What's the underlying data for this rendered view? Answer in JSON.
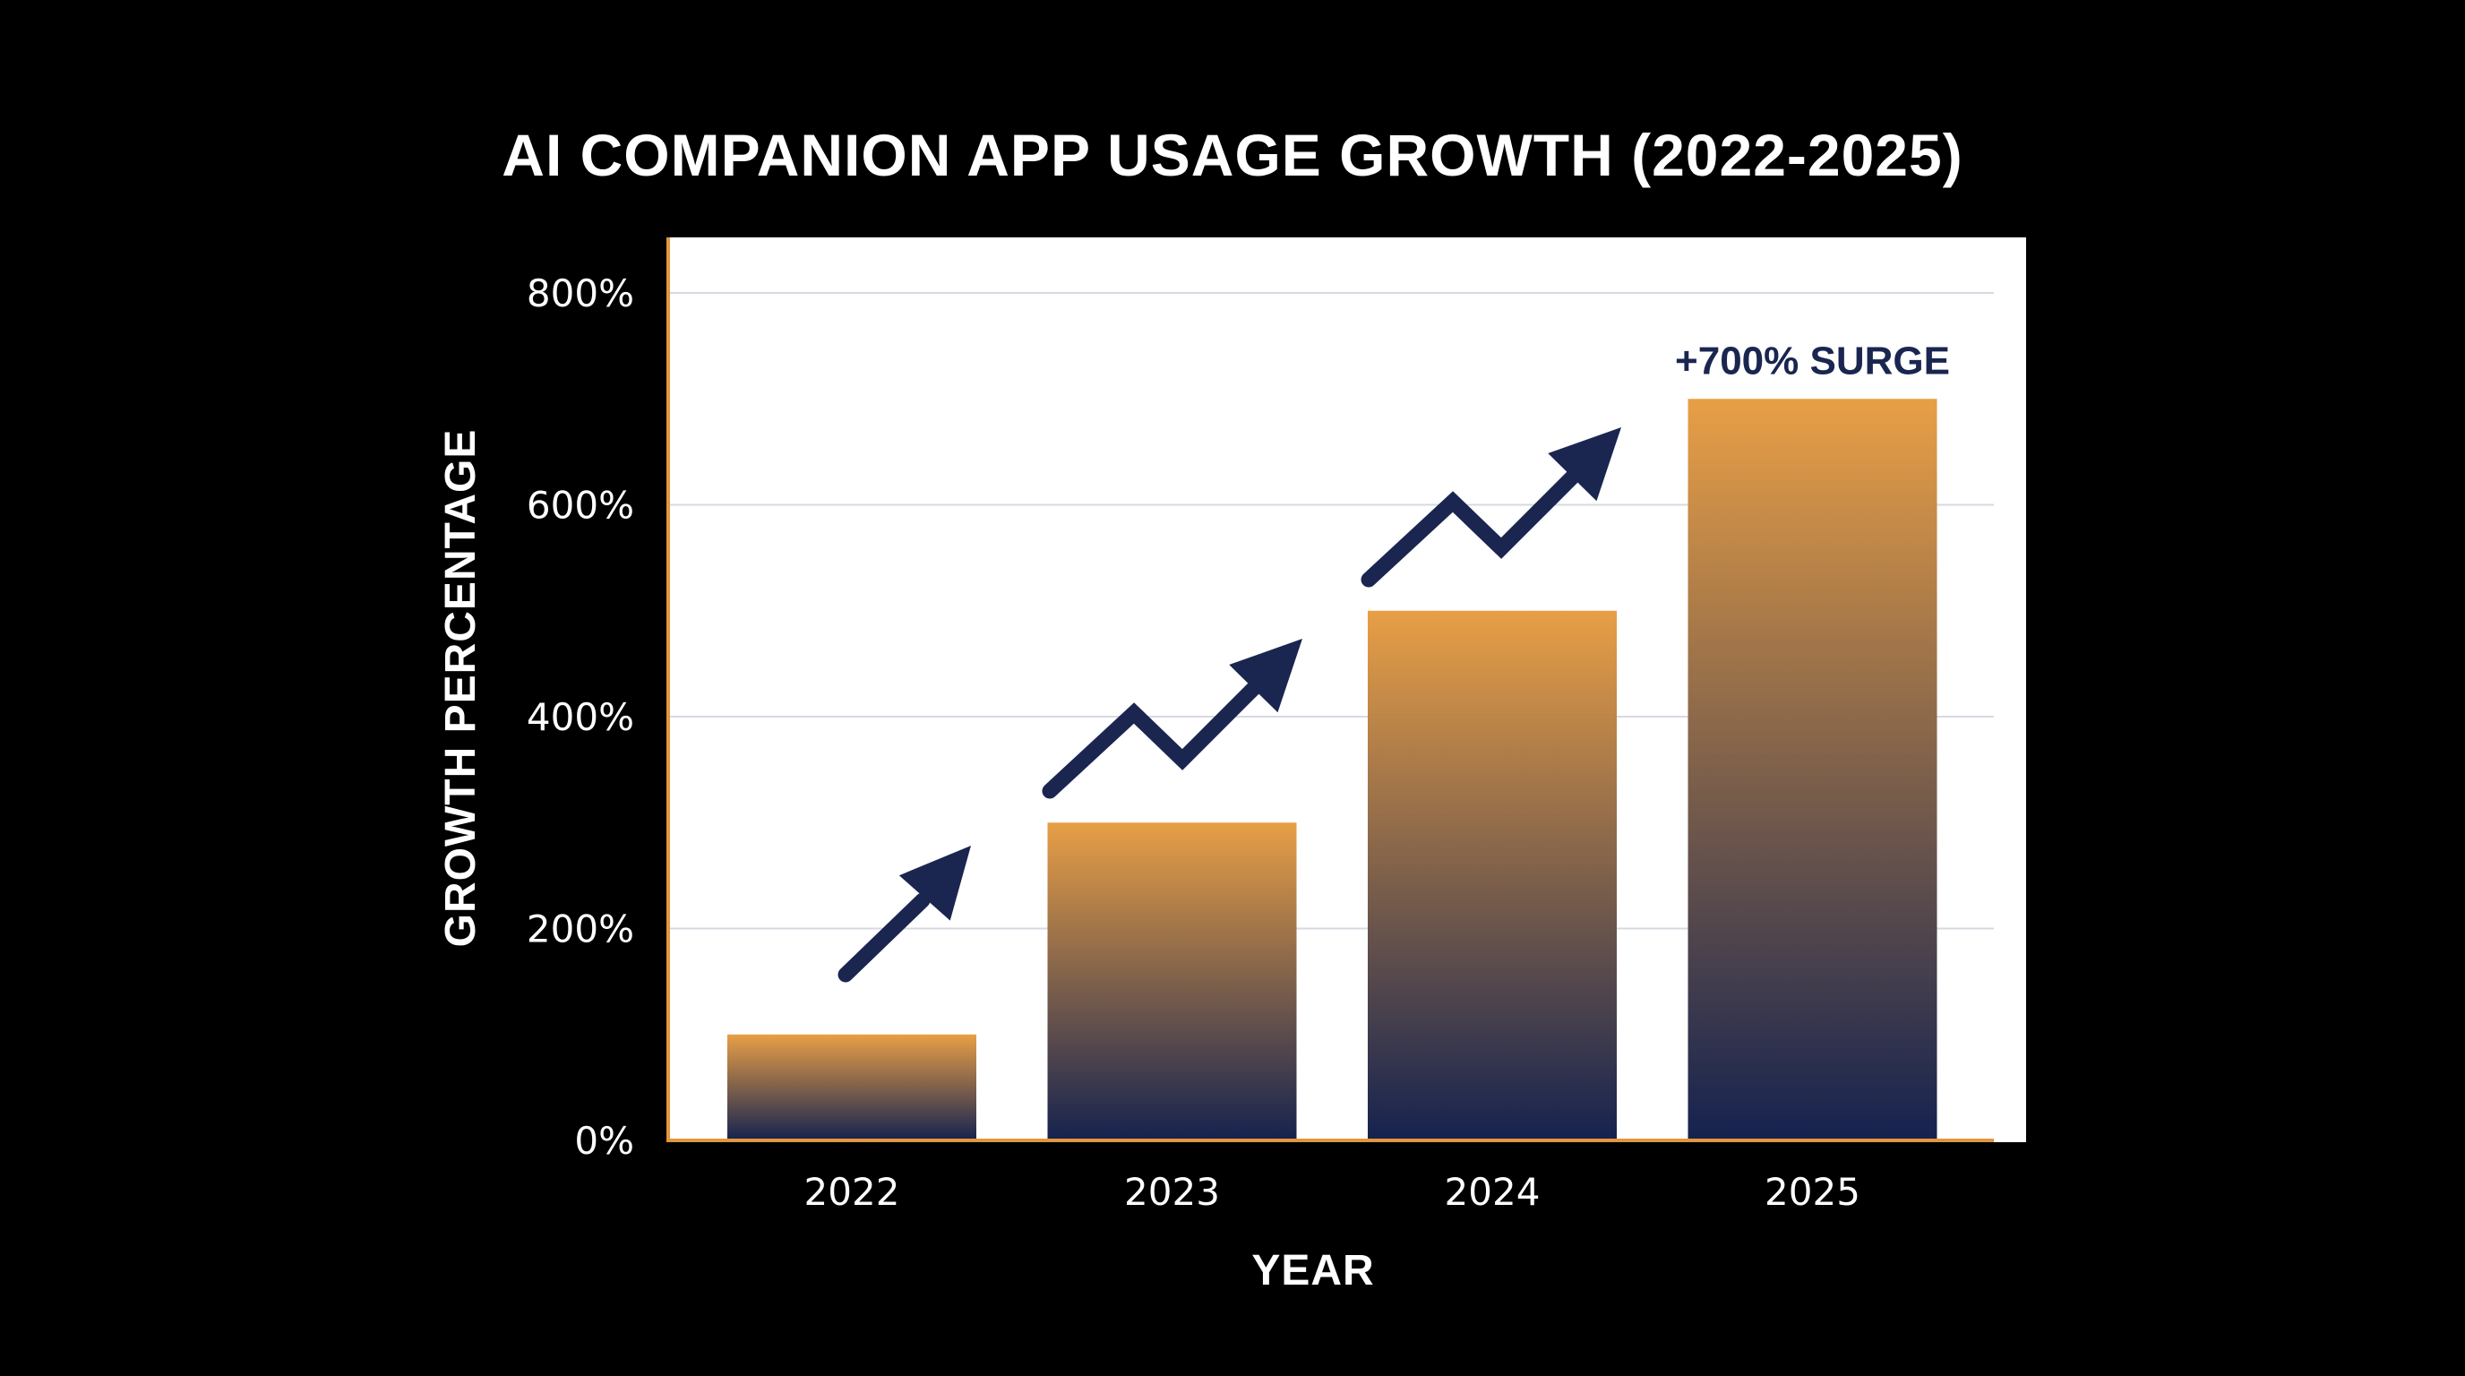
{
  "chart_data": {
    "type": "bar",
    "title": "AI COMPANION APP USAGE GROWTH (2022-2025)",
    "xlabel": "YEAR",
    "ylabel": "GROWTH PERCENTAGE",
    "categories": [
      "2022",
      "2023",
      "2024",
      "2025"
    ],
    "values": [
      100,
      300,
      500,
      700
    ],
    "ylim": [
      0,
      800
    ],
    "yticks": [
      0,
      200,
      400,
      600,
      800
    ],
    "ytick_labels": [
      "0%",
      "200%",
      "400%",
      "600%",
      "800%"
    ],
    "grid": true,
    "legend": "none",
    "annotations": [
      {
        "text": "+700% SURGE",
        "category": "2025",
        "value": 700
      }
    ]
  },
  "colors": {
    "background": "#000000",
    "plot_background": "#ffffff",
    "bar_top": "#e89f46",
    "bar_bottom": "#15224f",
    "axis_line": "#e2963f",
    "gridline": "#d8d8e2",
    "arrow": "#1a2650",
    "text": "#ffffff",
    "annotation": "#1a2650"
  },
  "decorations": {
    "growth_arrows": [
      {
        "between": [
          "2022",
          "2023"
        ],
        "icon": "trend-arrow-straight-icon"
      },
      {
        "between": [
          "2023",
          "2024"
        ],
        "icon": "trend-arrow-zigzag-icon"
      },
      {
        "between": [
          "2024",
          "2025"
        ],
        "icon": "trend-arrow-zigzag-icon"
      }
    ]
  }
}
